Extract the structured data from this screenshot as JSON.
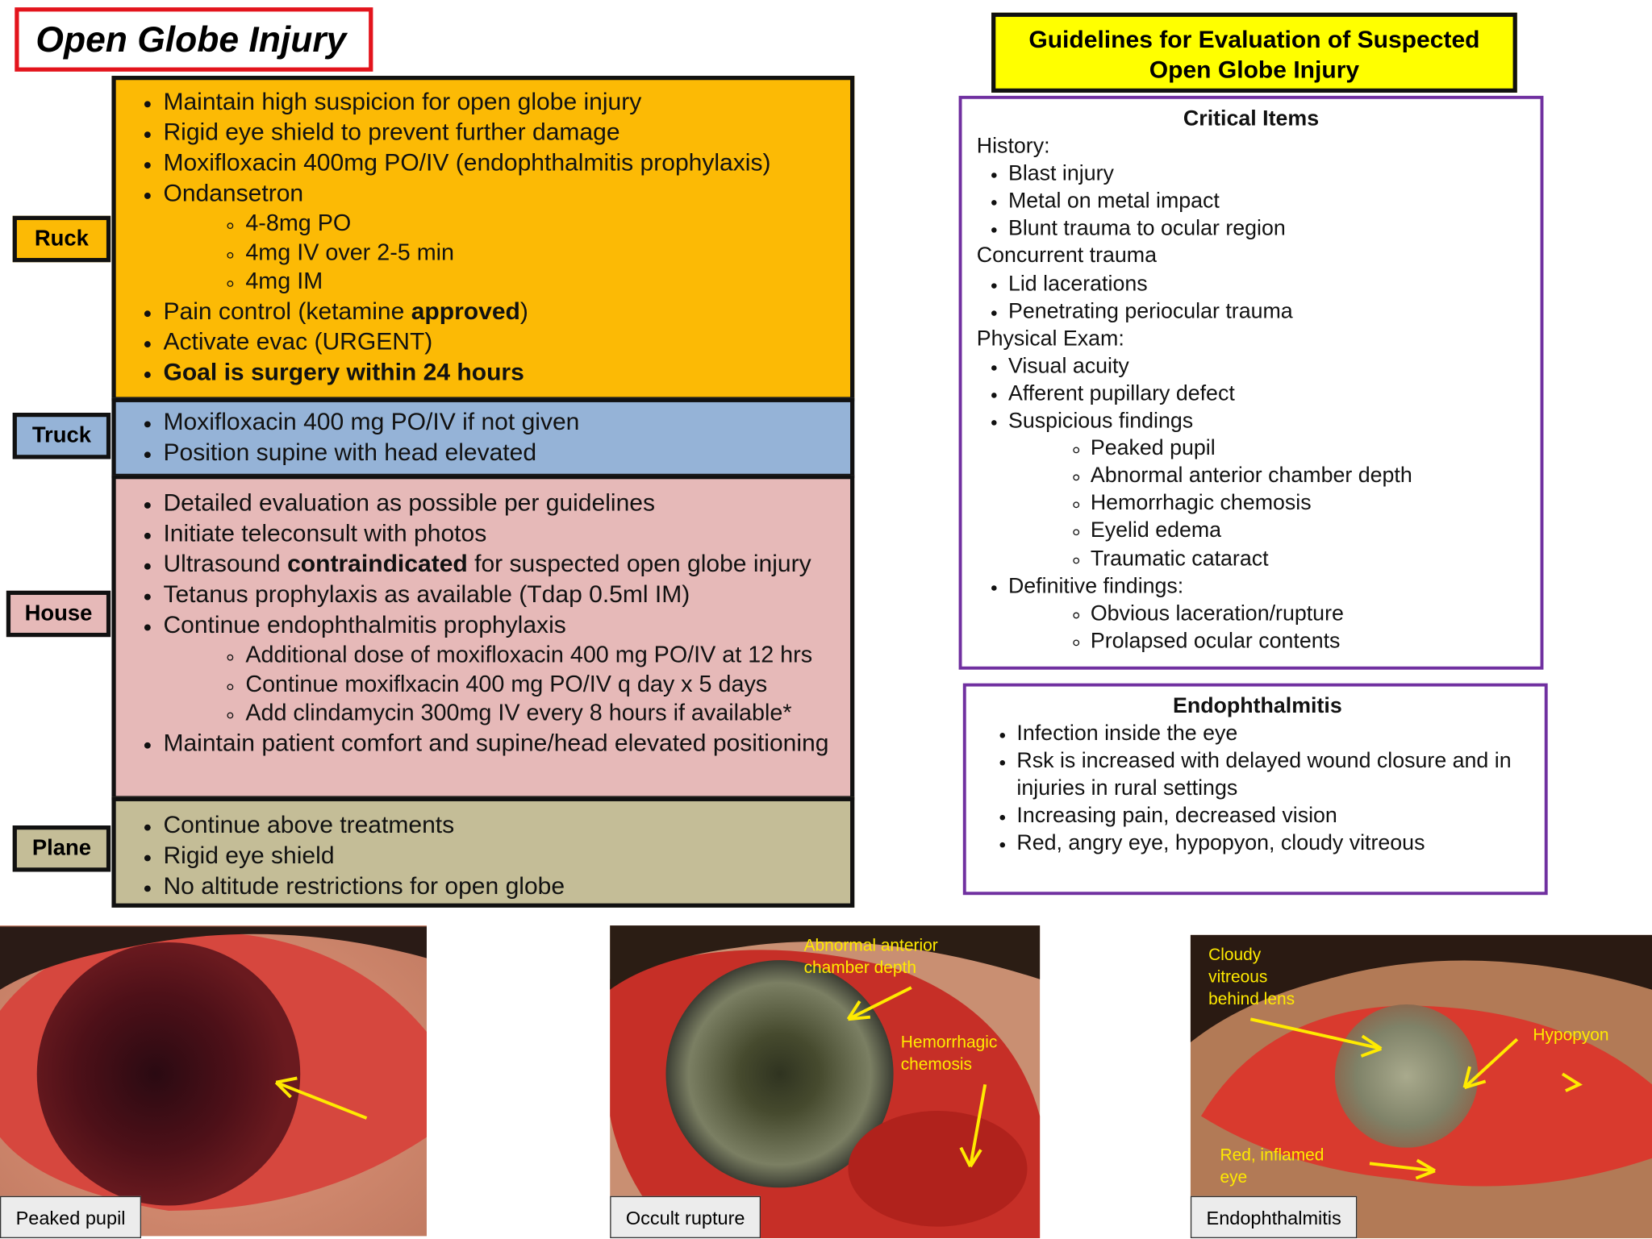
{
  "title": "Open Globe Injury",
  "phases": [
    {
      "label": "Ruck",
      "items": [
        "Maintain high suspicion for open globe injury",
        "Rigid eye shield to prevent further damage",
        "Moxifloxacin 400mg PO/IV (endophthalmitis prophylaxis)",
        {
          "text": "Ondansetron",
          "sub": [
            "4-8mg PO",
            "4mg IV over 2-5 min",
            "4mg IM"
          ]
        },
        {
          "text": [
            "Pain control (ketamine ",
            {
              "bold": "approved"
            },
            ")"
          ]
        },
        "Activate evac (URGENT)",
        {
          "text": [
            {
              "bold": "Goal is surgery within 24 hours"
            }
          ]
        }
      ]
    },
    {
      "label": "Truck",
      "items": [
        "Moxifloxacin 400 mg PO/IV if not given",
        "Position supine with head elevated"
      ]
    },
    {
      "label": "House",
      "items": [
        "Detailed evaluation as possible per guidelines",
        "Initiate teleconsult with photos",
        {
          "text": [
            "Ultrasound ",
            {
              "bold": "contraindicated"
            },
            " for suspected open globe injury"
          ]
        },
        "Tetanus prophylaxis as available (Tdap 0.5ml IM)",
        {
          "text": "Continue endophthalmitis prophylaxis",
          "sub": [
            "Additional dose of moxifloxacin 400 mg PO/IV at 12 hrs",
            "Continue moxiflxacin 400 mg PO/IV q day x 5 days",
            "Add clindamycin 300mg IV every 8 hours if available*"
          ]
        },
        "Maintain patient comfort and supine/head elevated positioning"
      ]
    },
    {
      "label": "Plane",
      "items": [
        "Continue above treatments",
        "Rigid eye shield",
        "No altitude restrictions for open globe"
      ]
    }
  ],
  "guidelines": {
    "title": "Guidelines for Evaluation of Suspected Open Globe Injury",
    "critical_items": {
      "title": "Critical Items",
      "sections": [
        {
          "heading": "History:",
          "items": [
            "Blast injury",
            "Metal on metal impact",
            "Blunt trauma to ocular region"
          ]
        },
        {
          "heading": "Concurrent trauma",
          "items": [
            "Lid lacerations",
            "Penetrating periocular  trauma"
          ]
        },
        {
          "heading": "Physical Exam:",
          "items": [
            "Visual acuity",
            "Afferent pupillary defect",
            {
              "text": "Suspicious findings",
              "sub": [
                "Peaked pupil",
                "Abnormal anterior chamber depth",
                "Hemorrhagic chemosis",
                "Eyelid edema",
                "Traumatic cataract"
              ]
            },
            {
              "text": "Definitive findings:",
              "sub": [
                "Obvious laceration/rupture",
                "Prolapsed ocular contents"
              ]
            }
          ]
        }
      ]
    },
    "endophthalmitis": {
      "title": "Endophthalmitis",
      "items": [
        "Infection inside the eye",
        "Rsk is increased with delayed wound closure and in injuries in rural settings",
        "Increasing pain, decreased vision",
        "Red, angry eye, hypopyon, cloudy vitreous"
      ]
    }
  },
  "photos": [
    {
      "caption": "Peaked pupil",
      "annotations": []
    },
    {
      "caption": "Occult rupture",
      "annotations": [
        "Abnormal anterior chamber depth",
        "Hemorrhagic chemosis"
      ]
    },
    {
      "caption": "Endophthalmitis",
      "annotations": [
        "Cloudy vitreous behind lens",
        "Hypopyon",
        "Red, inflamed eye"
      ]
    }
  ]
}
